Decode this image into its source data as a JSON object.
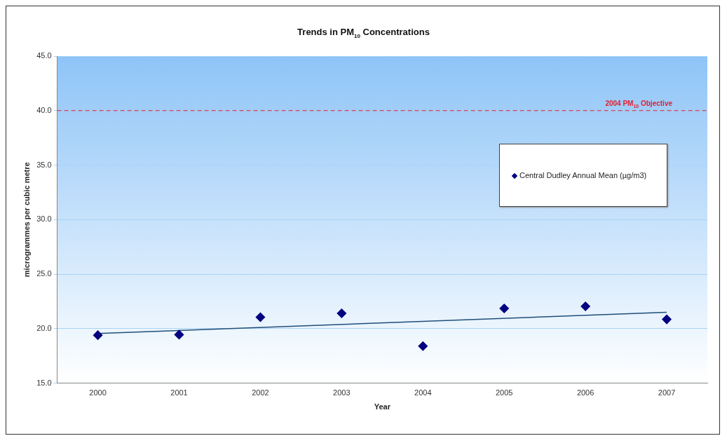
{
  "chart_data": {
    "type": "scatter",
    "title": "Trends in PM$_{10}$ Concentrations",
    "xlabel": "Year",
    "ylabel": "microgrammes per cubic metre",
    "categories": [
      "2000",
      "2001",
      "2002",
      "2003",
      "2004",
      "2005",
      "2006",
      "2007"
    ],
    "series": [
      {
        "name": "Central Dudley Annual Mean (µg/m3)",
        "color": "#000080",
        "marker": "diamond",
        "values": [
          19.4,
          19.45,
          21.05,
          21.4,
          18.4,
          21.85,
          22.05,
          20.85
        ]
      },
      {
        "type": "line",
        "color": "#1f4e79",
        "marker": "none",
        "line_style": "solid",
        "values": [
          19.55,
          null,
          null,
          null,
          null,
          null,
          null,
          21.5
        ]
      }
    ],
    "ylim": [
      15,
      45
    ],
    "yticks": [
      {
        "value": 15,
        "label": "15.0"
      },
      {
        "value": 20,
        "label": "20.0"
      },
      {
        "value": 25,
        "label": "25.0"
      },
      {
        "value": 30,
        "label": "30.0"
      },
      {
        "value": 35,
        "label": "35.0"
      },
      {
        "value": 40,
        "label": "40.0"
      },
      {
        "value": 45,
        "label": "45.0"
      }
    ],
    "grid": "y",
    "legend": "right",
    "ref_lines": [
      {
        "axis": "y",
        "value": 40,
        "label": "2004 PM$_{10}$ Objective",
        "color": "#e02030",
        "line_style": "dashed"
      }
    ]
  }
}
